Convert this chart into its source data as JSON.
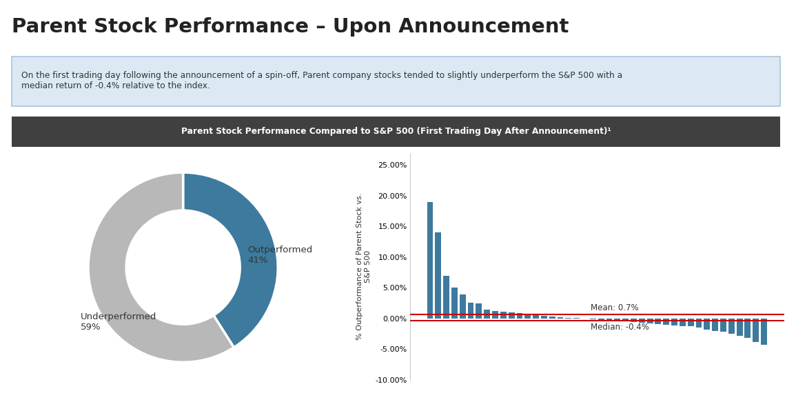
{
  "title": "Parent Stock Performance – Upon Announcement",
  "subtitle": "On the first trading day following the announcement of a spin-off, Parent company stocks tended to slightly underperform the S&P 500 with a\nmedian return of -0.4% relative to the index.",
  "chart_title": "Parent Stock Performance Compared to S&P 500 (First Trading Day After Announcement)¹",
  "donut_values": [
    41,
    59
  ],
  "donut_colors": [
    "#3d7a9e",
    "#b8b8b8"
  ],
  "bar_values": [
    0.19,
    0.14,
    0.07,
    0.051,
    0.039,
    0.026,
    0.025,
    0.014,
    0.012,
    0.011,
    0.01,
    0.009,
    0.007,
    0.005,
    0.004,
    0.003,
    0.002,
    0.001,
    0.0005,
    0.0,
    -0.001,
    -0.002,
    -0.003,
    -0.004,
    -0.005,
    -0.006,
    -0.007,
    -0.008,
    -0.009,
    -0.01,
    -0.011,
    -0.012,
    -0.013,
    -0.015,
    -0.018,
    -0.02,
    -0.022,
    -0.025,
    -0.028,
    -0.032,
    -0.038,
    -0.043
  ],
  "bar_color": "#3d7a9e",
  "mean_value": 0.007,
  "median_value": -0.004,
  "mean_label": "Mean: 0.7%",
  "median_label": "Median: -0.4%",
  "mean_color": "#cc0000",
  "median_color": "#cc0000",
  "ylabel": "% Outperformance of Parent Stock vs.\nS&P 500",
  "ylim_min": -0.1,
  "ylim_max": 0.27,
  "yticks": [
    -0.1,
    -0.05,
    0.0,
    0.05,
    0.1,
    0.15,
    0.2,
    0.25
  ],
  "background_color": "#ffffff",
  "header_bg": "#404040",
  "info_box_bg": "#dce9f5",
  "info_box_border": "#a8c4dc",
  "title_color": "#222222",
  "subtitle_color": "#333333",
  "text_color": "#333333"
}
